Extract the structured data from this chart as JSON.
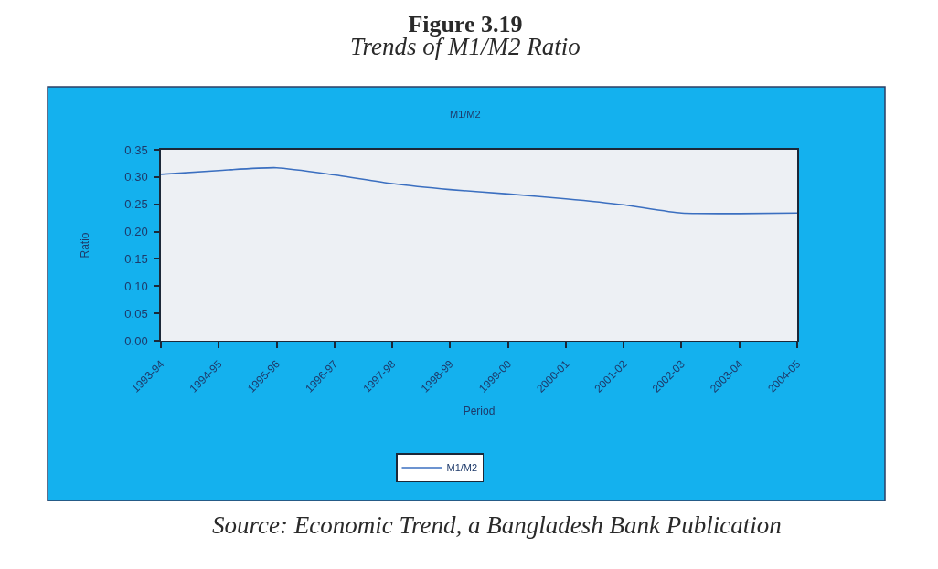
{
  "chart_data": {
    "type": "line",
    "title": "Figure 3.19",
    "subtitle": "Trends of M1/M2 Ratio",
    "xlabel": "Period",
    "ylabel": "Ratio",
    "annotations": [
      "M1/M2",
      "Source: Economic Trend, a Bangladesh Bank Publication"
    ],
    "categories": [
      "1993-94",
      "1994-95",
      "1995-96",
      "1996-97",
      "1997-98",
      "1998-99",
      "1999-00",
      "2000-01",
      "2001-02",
      "2002-03",
      "2003-04",
      "2004-05"
    ],
    "series": [
      {
        "name": "M1/M2",
        "color": "#3b6fc0",
        "values": [
          0.305,
          0.312,
          0.317,
          0.304,
          0.288,
          0.277,
          0.269,
          0.26,
          0.249,
          0.234,
          0.233,
          0.234
        ]
      }
    ],
    "ylim": [
      0,
      0.35
    ],
    "yticks": [
      {
        "value": 0,
        "label": "0.00"
      },
      {
        "value": 0.05,
        "label": "0.05"
      },
      {
        "value": 0.1,
        "label": "0.10"
      },
      {
        "value": 0.15,
        "label": "0.15"
      },
      {
        "value": 0.2,
        "label": "0.20"
      },
      {
        "value": 0.25,
        "label": "0.25"
      },
      {
        "value": 0.3,
        "label": "0.30"
      },
      {
        "value": 0.35,
        "label": "0.35"
      }
    ],
    "legend": "bottom",
    "line_style": "solid"
  }
}
